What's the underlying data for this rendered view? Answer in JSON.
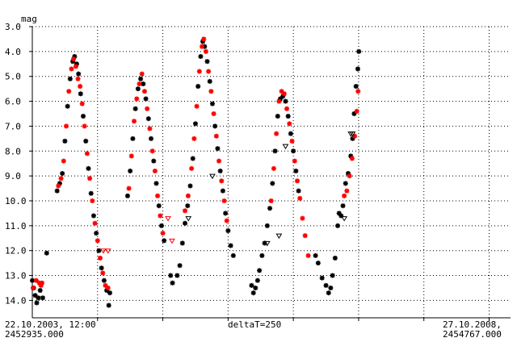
{
  "chart_data": {
    "type": "scatter",
    "ylabel": "mag",
    "y_inverted": true,
    "ylim": [
      3.0,
      14.7
    ],
    "yticks": [
      3.0,
      4.0,
      5.0,
      6.0,
      7.0,
      8.0,
      9.0,
      10.0,
      11.0,
      12.0,
      13.0,
      14.0
    ],
    "ytick_labels": [
      "3.0",
      "4.0",
      "5.0",
      "6.0",
      "7.0",
      "8.0",
      "9.0",
      "10.0",
      "11.0",
      "12.0",
      "13.0",
      "14.0"
    ],
    "x_start_label": "22.10.2003, 12:00",
    "x_start_jd_label": "2452935.000",
    "x_end_label": "27.10.2008,",
    "x_end_jd_label": "2454767.000",
    "x_center_label": "deltaT=250",
    "xlim": [
      2452935.0,
      2454767.0
    ],
    "xtick_step": 250,
    "grid": true,
    "colors": {
      "series_a": "#000000",
      "series_b": "#ff0000",
      "grid": "#000000"
    },
    "series": [
      {
        "marker": "asterisk",
        "color": "#000000",
        "points": [
          [
            2452935,
            13.2
          ],
          [
            2452940,
            13.5
          ],
          [
            2452946,
            13.8
          ],
          [
            2452952,
            14.1
          ],
          [
            2452958,
            13.9
          ],
          [
            2452965,
            13.6
          ],
          [
            2452975,
            13.9
          ],
          [
            2452990,
            12.1
          ],
          [
            2453030,
            9.6
          ],
          [
            2453040,
            9.3
          ],
          [
            2453050,
            8.9
          ],
          [
            2453060,
            7.6
          ],
          [
            2453070,
            6.2
          ],
          [
            2453080,
            5.1
          ],
          [
            2453090,
            4.4
          ],
          [
            2453097,
            4.2
          ],
          [
            2453105,
            4.5
          ],
          [
            2453112,
            4.9
          ],
          [
            2453120,
            5.7
          ],
          [
            2453130,
            6.6
          ],
          [
            2453140,
            7.6
          ],
          [
            2453150,
            8.7
          ],
          [
            2453160,
            9.7
          ],
          [
            2453170,
            10.6
          ],
          [
            2453180,
            11.3
          ],
          [
            2453190,
            12.0
          ],
          [
            2453200,
            12.7
          ],
          [
            2453210,
            13.2
          ],
          [
            2453220,
            13.6
          ],
          [
            2453228,
            14.2
          ],
          [
            2453232,
            13.7
          ],
          [
            2453300,
            9.8
          ],
          [
            2453310,
            8.8
          ],
          [
            2453320,
            7.5
          ],
          [
            2453330,
            6.3
          ],
          [
            2453340,
            5.5
          ],
          [
            2453350,
            5.1
          ],
          [
            2453360,
            5.3
          ],
          [
            2453370,
            5.9
          ],
          [
            2453380,
            6.7
          ],
          [
            2453390,
            7.5
          ],
          [
            2453400,
            8.4
          ],
          [
            2453410,
            9.3
          ],
          [
            2453420,
            10.2
          ],
          [
            2453430,
            11.0
          ],
          [
            2453440,
            11.6
          ],
          [
            2453465,
            13.0
          ],
          [
            2453472,
            13.3
          ],
          [
            2453490,
            13.0
          ],
          [
            2453500,
            12.6
          ],
          [
            2453510,
            11.7
          ],
          [
            2453520,
            10.9
          ],
          [
            2453530,
            10.2
          ],
          [
            2453540,
            9.4
          ],
          [
            2453550,
            8.3
          ],
          [
            2453560,
            6.9
          ],
          [
            2453570,
            5.4
          ],
          [
            2453580,
            4.2
          ],
          [
            2453588,
            3.6
          ],
          [
            2453595,
            3.8
          ],
          [
            2453605,
            4.4
          ],
          [
            2453615,
            5.2
          ],
          [
            2453625,
            6.1
          ],
          [
            2453635,
            7.0
          ],
          [
            2453645,
            7.9
          ],
          [
            2453655,
            8.8
          ],
          [
            2453665,
            9.6
          ],
          [
            2453675,
            10.5
          ],
          [
            2453685,
            11.2
          ],
          [
            2453695,
            11.8
          ],
          [
            2453705,
            12.2
          ],
          [
            2453775,
            13.4
          ],
          [
            2453782,
            13.7
          ],
          [
            2453790,
            13.5
          ],
          [
            2453798,
            13.2
          ],
          [
            2453805,
            12.8
          ],
          [
            2453815,
            12.2
          ],
          [
            2453825,
            11.7
          ],
          [
            2453835,
            11.0
          ],
          [
            2453845,
            10.3
          ],
          [
            2453855,
            9.3
          ],
          [
            2453865,
            8.0
          ],
          [
            2453875,
            6.6
          ],
          [
            2453885,
            5.9
          ],
          [
            2453895,
            5.8
          ],
          [
            2453905,
            6.0
          ],
          [
            2453915,
            6.6
          ],
          [
            2453925,
            7.3
          ],
          [
            2453935,
            8.0
          ],
          [
            2453945,
            8.8
          ],
          [
            2453955,
            9.6
          ],
          [
            2454020,
            12.2
          ],
          [
            2454030,
            12.5
          ],
          [
            2454045,
            13.1
          ],
          [
            2454060,
            13.4
          ],
          [
            2454070,
            13.7
          ],
          [
            2454078,
            13.5
          ],
          [
            2454085,
            13.0
          ],
          [
            2454095,
            12.3
          ],
          [
            2454105,
            11.0
          ],
          [
            2454110,
            10.5
          ],
          [
            2454118,
            10.6
          ],
          [
            2454125,
            10.2
          ],
          [
            2454135,
            9.3
          ],
          [
            2454145,
            8.9
          ],
          [
            2454155,
            8.2
          ],
          [
            2454162,
            7.5
          ],
          [
            2454168,
            6.5
          ],
          [
            2454175,
            5.4
          ],
          [
            2454182,
            4.7
          ],
          [
            2454186,
            4.0
          ]
        ]
      },
      {
        "marker": "asterisk",
        "color": "#ff0000",
        "points": [
          [
            2452938,
            13.5
          ],
          [
            2452950,
            13.2
          ],
          [
            2452962,
            13.3
          ],
          [
            2452968,
            13.4
          ],
          [
            2452972,
            13.3
          ],
          [
            2453035,
            9.4
          ],
          [
            2453045,
            9.1
          ],
          [
            2453055,
            8.4
          ],
          [
            2453065,
            7.0
          ],
          [
            2453075,
            5.6
          ],
          [
            2453085,
            4.7
          ],
          [
            2453093,
            4.3
          ],
          [
            2453102,
            4.6
          ],
          [
            2453110,
            5.1
          ],
          [
            2453118,
            5.4
          ],
          [
            2453126,
            6.1
          ],
          [
            2453135,
            7.0
          ],
          [
            2453145,
            8.1
          ],
          [
            2453155,
            9.1
          ],
          [
            2453165,
            10.0
          ],
          [
            2453175,
            10.9
          ],
          [
            2453185,
            11.6
          ],
          [
            2453195,
            12.3
          ],
          [
            2453205,
            12.9
          ],
          [
            2453215,
            13.4
          ],
          [
            2453225,
            13.5
          ],
          [
            2453305,
            9.5
          ],
          [
            2453315,
            8.2
          ],
          [
            2453325,
            6.8
          ],
          [
            2453335,
            5.9
          ],
          [
            2453345,
            5.3
          ],
          [
            2453355,
            4.9
          ],
          [
            2453365,
            5.6
          ],
          [
            2453375,
            6.3
          ],
          [
            2453385,
            7.1
          ],
          [
            2453395,
            8.0
          ],
          [
            2453405,
            8.8
          ],
          [
            2453415,
            9.8
          ],
          [
            2453425,
            10.6
          ],
          [
            2453435,
            11.3
          ],
          [
            2453520,
            10.4
          ],
          [
            2453532,
            9.8
          ],
          [
            2453545,
            8.7
          ],
          [
            2453555,
            7.5
          ],
          [
            2453565,
            6.2
          ],
          [
            2453575,
            4.8
          ],
          [
            2453585,
            3.8
          ],
          [
            2453592,
            3.5
          ],
          [
            2453600,
            4.0
          ],
          [
            2453610,
            4.8
          ],
          [
            2453620,
            5.6
          ],
          [
            2453630,
            6.5
          ],
          [
            2453640,
            7.4
          ],
          [
            2453650,
            8.4
          ],
          [
            2453660,
            9.2
          ],
          [
            2453670,
            10.0
          ],
          [
            2453680,
            10.8
          ],
          [
            2453850,
            10.0
          ],
          [
            2453860,
            8.7
          ],
          [
            2453870,
            7.3
          ],
          [
            2453880,
            6.0
          ],
          [
            2453890,
            5.6
          ],
          [
            2453900,
            5.7
          ],
          [
            2453910,
            6.3
          ],
          [
            2453920,
            6.9
          ],
          [
            2453930,
            7.6
          ],
          [
            2453940,
            8.4
          ],
          [
            2453950,
            9.2
          ],
          [
            2453960,
            9.9
          ],
          [
            2453970,
            10.7
          ],
          [
            2453980,
            11.4
          ],
          [
            2453992,
            12.2
          ],
          [
            2454130,
            9.8
          ],
          [
            2454140,
            9.6
          ],
          [
            2454150,
            9.0
          ],
          [
            2454160,
            8.3
          ],
          [
            2454170,
            7.4
          ],
          [
            2454178,
            6.4
          ],
          [
            2454183,
            5.6
          ]
        ]
      },
      {
        "marker": "triangle-down",
        "color": "#ff0000",
        "points": [
          [
            2453207,
            12.0
          ],
          [
            2453225,
            12.0
          ],
          [
            2453455,
            10.7
          ],
          [
            2453470,
            11.6
          ]
        ]
      },
      {
        "marker": "triangle-down",
        "color": "#000000",
        "points": [
          [
            2453533,
            10.7
          ],
          [
            2453625,
            9.0
          ],
          [
            2453835,
            11.7
          ],
          [
            2453880,
            11.4
          ],
          [
            2453905,
            7.8
          ],
          [
            2454130,
            10.7
          ],
          [
            2454155,
            7.3
          ],
          [
            2454162,
            7.3
          ]
        ]
      }
    ]
  }
}
